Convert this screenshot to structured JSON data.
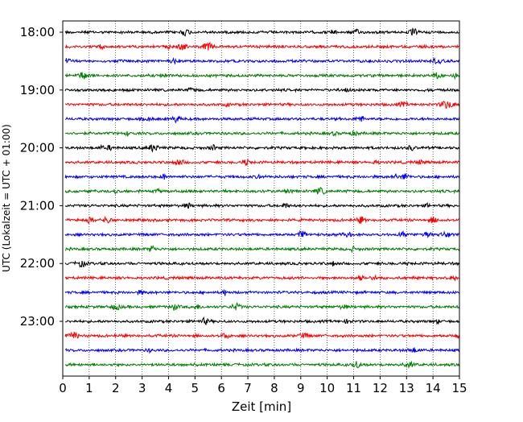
{
  "chart_data": {
    "type": "line",
    "title": "",
    "xlabel": "Zeit  [min]",
    "ylabel": "UTC (Lokalzeit = UTC + 01:00)",
    "xlim": [
      0,
      15
    ],
    "x_ticks": [
      0,
      1,
      2,
      3,
      4,
      5,
      6,
      7,
      8,
      9,
      10,
      11,
      12,
      13,
      14,
      15
    ],
    "x_tick_labels": [
      "0",
      "1",
      "2",
      "3",
      "4",
      "5",
      "6",
      "7",
      "8",
      "9",
      "10",
      "11",
      "12",
      "13",
      "14",
      "15"
    ],
    "y_tick_labels": [
      "18:00",
      "19:00",
      "20:00",
      "21:00",
      "22:00",
      "23:00"
    ],
    "grid": "vertical dotted lines at each minute",
    "legend": "none",
    "trace_interval_minutes": 15,
    "trace_colors": [
      "#000000",
      "#ff0000",
      "#0000ff",
      "#008000"
    ],
    "series": [
      {
        "start": "18:00",
        "color": "#000000"
      },
      {
        "start": "18:15",
        "color": "#ff0000"
      },
      {
        "start": "18:30",
        "color": "#0000ff"
      },
      {
        "start": "18:45",
        "color": "#008000"
      },
      {
        "start": "19:00",
        "color": "#000000"
      },
      {
        "start": "19:15",
        "color": "#ff0000"
      },
      {
        "start": "19:30",
        "color": "#0000ff"
      },
      {
        "start": "19:45",
        "color": "#008000"
      },
      {
        "start": "20:00",
        "color": "#000000"
      },
      {
        "start": "20:15",
        "color": "#ff0000"
      },
      {
        "start": "20:30",
        "color": "#0000ff"
      },
      {
        "start": "20:45",
        "color": "#008000"
      },
      {
        "start": "21:00",
        "color": "#000000"
      },
      {
        "start": "21:15",
        "color": "#ff0000"
      },
      {
        "start": "21:30",
        "color": "#0000ff"
      },
      {
        "start": "21:45",
        "color": "#008000"
      },
      {
        "start": "22:00",
        "color": "#000000"
      },
      {
        "start": "22:15",
        "color": "#ff0000"
      },
      {
        "start": "22:30",
        "color": "#0000ff"
      },
      {
        "start": "22:45",
        "color": "#008000"
      },
      {
        "start": "23:00",
        "color": "#000000"
      },
      {
        "start": "23:15",
        "color": "#ff0000"
      },
      {
        "start": "23:30",
        "color": "#0000ff"
      },
      {
        "start": "23:45",
        "color": "#008000"
      }
    ]
  }
}
